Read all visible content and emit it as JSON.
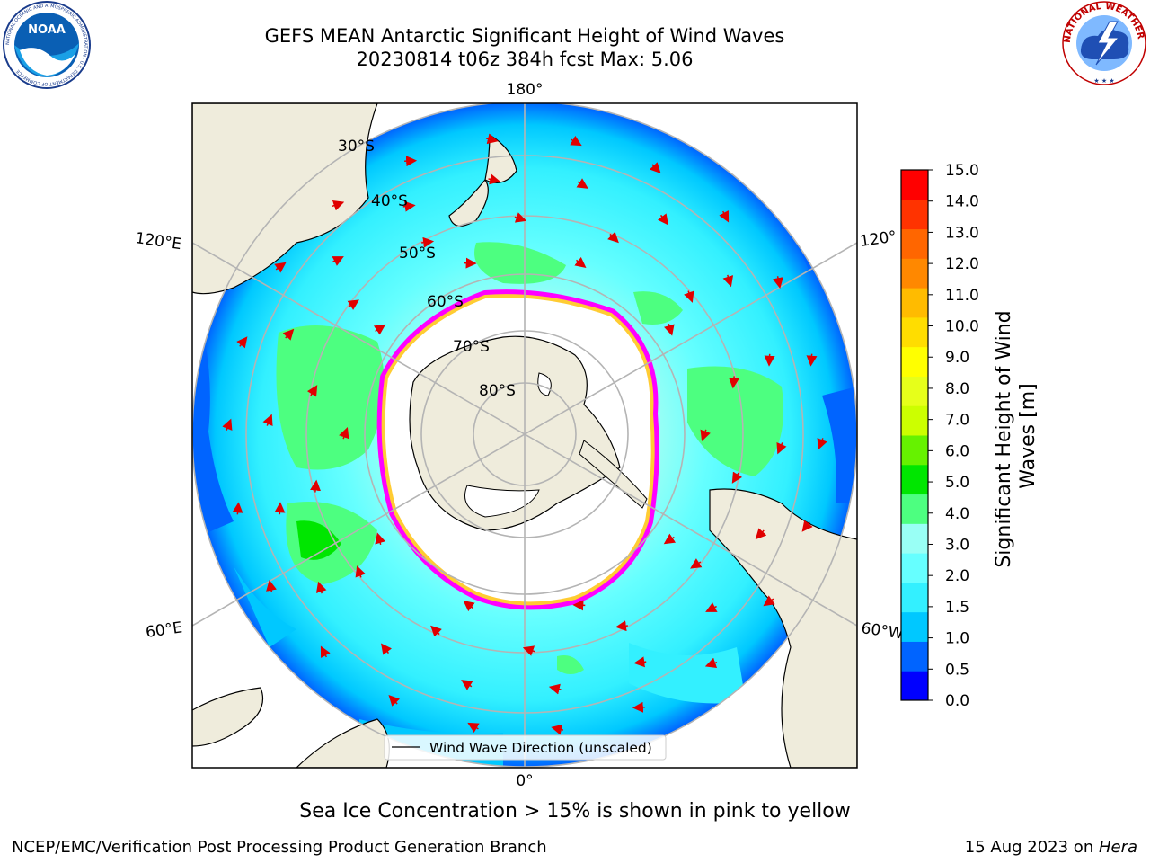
{
  "title": {
    "line1": "GEFS MEAN Antarctic Significant Height of Wind Waves",
    "line2": "20230814 t06z 384h fcst   Max: 5.06"
  },
  "map": {
    "projection": "south-polar-stereographic",
    "meridian_labels": [
      "180°",
      "120°E",
      "120°",
      "60°E",
      "60°W",
      "0°"
    ],
    "parallel_labels": [
      "30°S",
      "40°S",
      "50°S",
      "60°S",
      "70°S",
      "80°S"
    ],
    "legend_text": "Wind Wave Direction (unscaled)",
    "land_color": "#efecdc",
    "ice_colors": [
      "#ff00ff",
      "#ff66cc",
      "#ffcc33",
      "#ffff66"
    ]
  },
  "colorbar": {
    "label": "Significant Height of Wind Waves [m]",
    "tick_labels": [
      "0.0",
      "0.5",
      "1.0",
      "1.5",
      "2.0",
      "3.0",
      "4.0",
      "5.0",
      "6.0",
      "7.0",
      "8.0",
      "9.0",
      "10.0",
      "11.0",
      "12.0",
      "13.0",
      "14.0",
      "15.0"
    ],
    "colors": [
      "#0000ff",
      "#0064ff",
      "#00c8ff",
      "#33f0ff",
      "#66ffff",
      "#99fff5",
      "#4dff80",
      "#00e600",
      "#66f200",
      "#ccff00",
      "#e6ff1a",
      "#ffff00",
      "#ffdd00",
      "#ffbb00",
      "#ff8800",
      "#ff6600",
      "#ff3300",
      "#ff0000"
    ]
  },
  "notes": {
    "ice": "Sea Ice Concentration > 15% is shown in pink to yellow"
  },
  "footer": {
    "left": "NCEP/EMC/Verification Post Processing Product Generation Branch",
    "date": "15 Aug 2023 on ",
    "machine": "Hera"
  },
  "logos": {
    "noaa_text": "NOAA",
    "noaa_ring": "NATIONAL OCEANIC AND ATMOSPHERIC ADMINISTRATION · U.S. DEPARTMENT OF COMMERCE",
    "nws_ring": "NATIONAL WEATHER SERVICE"
  }
}
